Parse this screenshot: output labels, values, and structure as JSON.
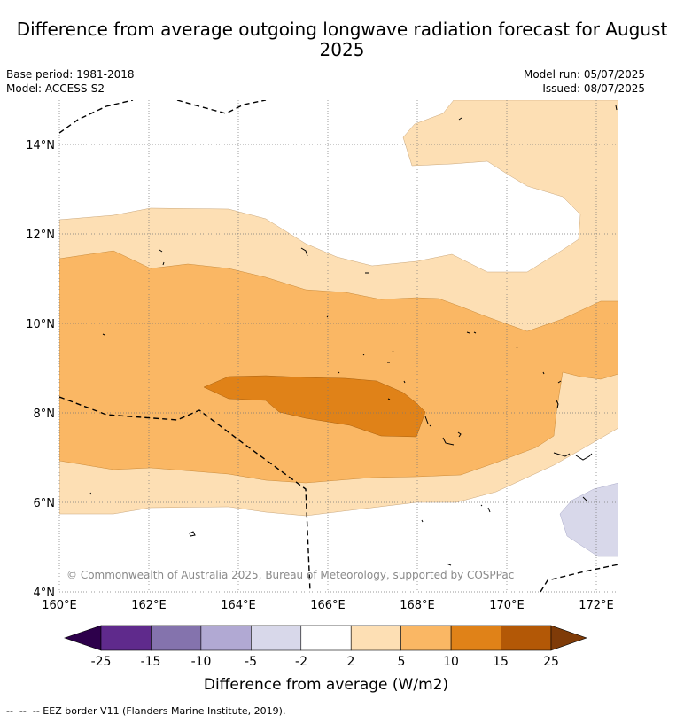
{
  "title": "Difference from average outgoing longwave radiation forecast for August 2025",
  "info": {
    "base_period": "Base period: 1981-2018",
    "model": "Model: ACCESS-S2",
    "model_run": "Model run: 05/07/2025",
    "issued": "Issued: 08/07/2025"
  },
  "map": {
    "lon_labels": [
      "160°E",
      "162°E",
      "164°E",
      "166°E",
      "168°E",
      "170°E",
      "172°E"
    ],
    "lat_labels": [
      "4°N",
      "6°N",
      "8°N",
      "10°N",
      "12°N",
      "14°N"
    ],
    "copyright": "© Commonwealth of Australia 2025, Bureau of Meteorology, supported by COSPPac",
    "fill_colors": {
      "2_to_5": "#fddfb4",
      "5_to_10": "#fab764",
      "10_to_15": "#e08218",
      "-5_to_-2": "#d8d8ea"
    }
  },
  "colorbar": {
    "ticks": [
      "-25",
      "-15",
      "-10",
      "-5",
      "-2",
      "2",
      "5",
      "10",
      "15",
      "25"
    ],
    "colors": [
      "#2d004b",
      "#5f2a8c",
      "#8473ad",
      "#b1a9d3",
      "#d8d8ea",
      "#ffffff",
      "#fddfb4",
      "#fab764",
      "#e08218",
      "#b35806",
      "#7f3b08"
    ],
    "label": "Difference from average (W/m2)"
  },
  "footnote": "--  --  -- EEZ border V11 (Flanders Marine Institute, 2019)."
}
